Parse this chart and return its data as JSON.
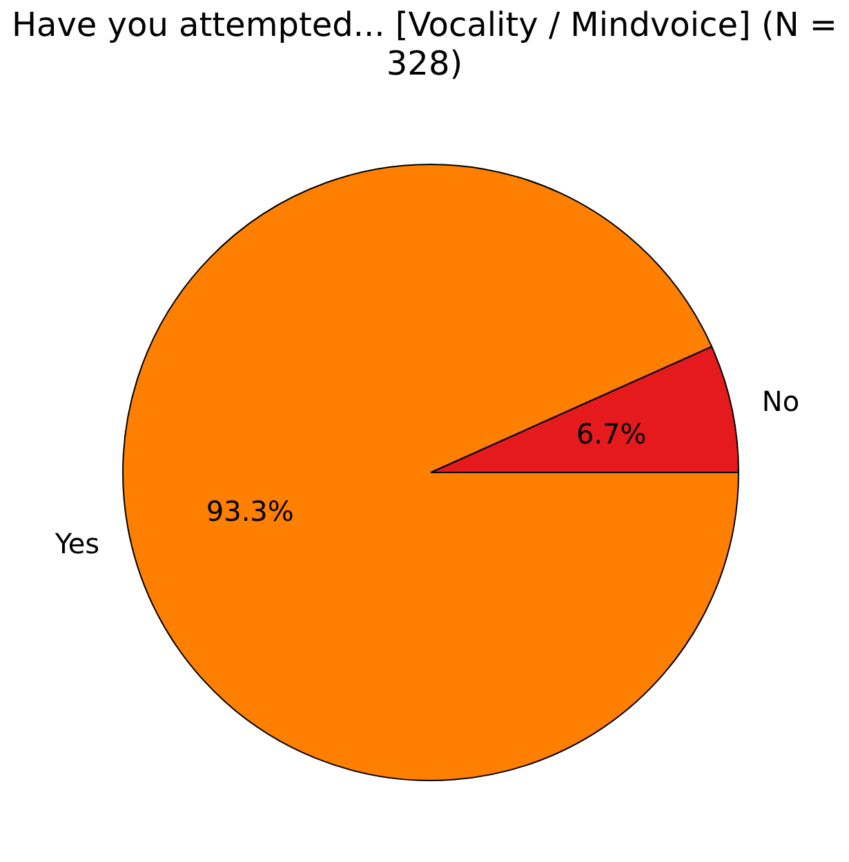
{
  "chart_data": {
    "type": "pie",
    "title": "Have you attempted... [Vocality / Mindvoice] (N = 328)",
    "categories": [
      "No",
      "Yes"
    ],
    "values": [
      6.7,
      93.3
    ],
    "colors": [
      "#e41a1c",
      "#ff7f00"
    ],
    "value_labels": [
      "6.7%",
      "93.3%"
    ]
  }
}
